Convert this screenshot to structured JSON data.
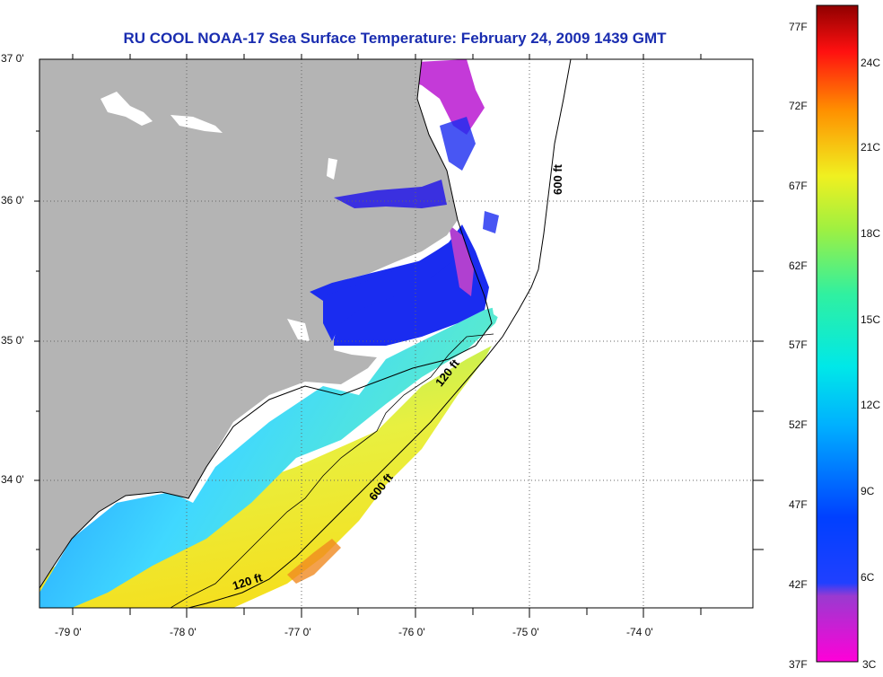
{
  "title": "RU COOL  NOAA-17  Sea Surface Temperature:  February 24, 2009 1439 GMT",
  "lat_labels": [
    {
      "text": "37 0'",
      "value": 37
    },
    {
      "text": "36 0'",
      "value": 36
    },
    {
      "text": "35 0'",
      "value": 35
    },
    {
      "text": "34 0'",
      "value": 34
    }
  ],
  "lon_labels": [
    {
      "text": "-79 0'",
      "value": -79
    },
    {
      "text": "-78 0'",
      "value": -78
    },
    {
      "text": "-77 0'",
      "value": -77
    },
    {
      "text": "-76 0'",
      "value": -76
    },
    {
      "text": "-75 0'",
      "value": -75
    },
    {
      "text": "-74 0'",
      "value": -74
    }
  ],
  "contours": [
    {
      "label": "600 ft"
    },
    {
      "label": "600 ft"
    },
    {
      "label": "120 ft"
    },
    {
      "label": "120 ft"
    }
  ],
  "legend": {
    "fahrenheit": [
      "77F",
      "72F",
      "67F",
      "62F",
      "57F",
      "52F",
      "47F",
      "42F",
      "37F"
    ],
    "celsius": [
      "24C",
      "21C",
      "18C",
      "15C",
      "12C",
      "9C",
      "6C",
      "3C"
    ]
  },
  "colors": {
    "land": "#b4b4b4",
    "ocean_no_data": "#ffffff",
    "title": "#1a2db0",
    "grid": "#666666"
  }
}
